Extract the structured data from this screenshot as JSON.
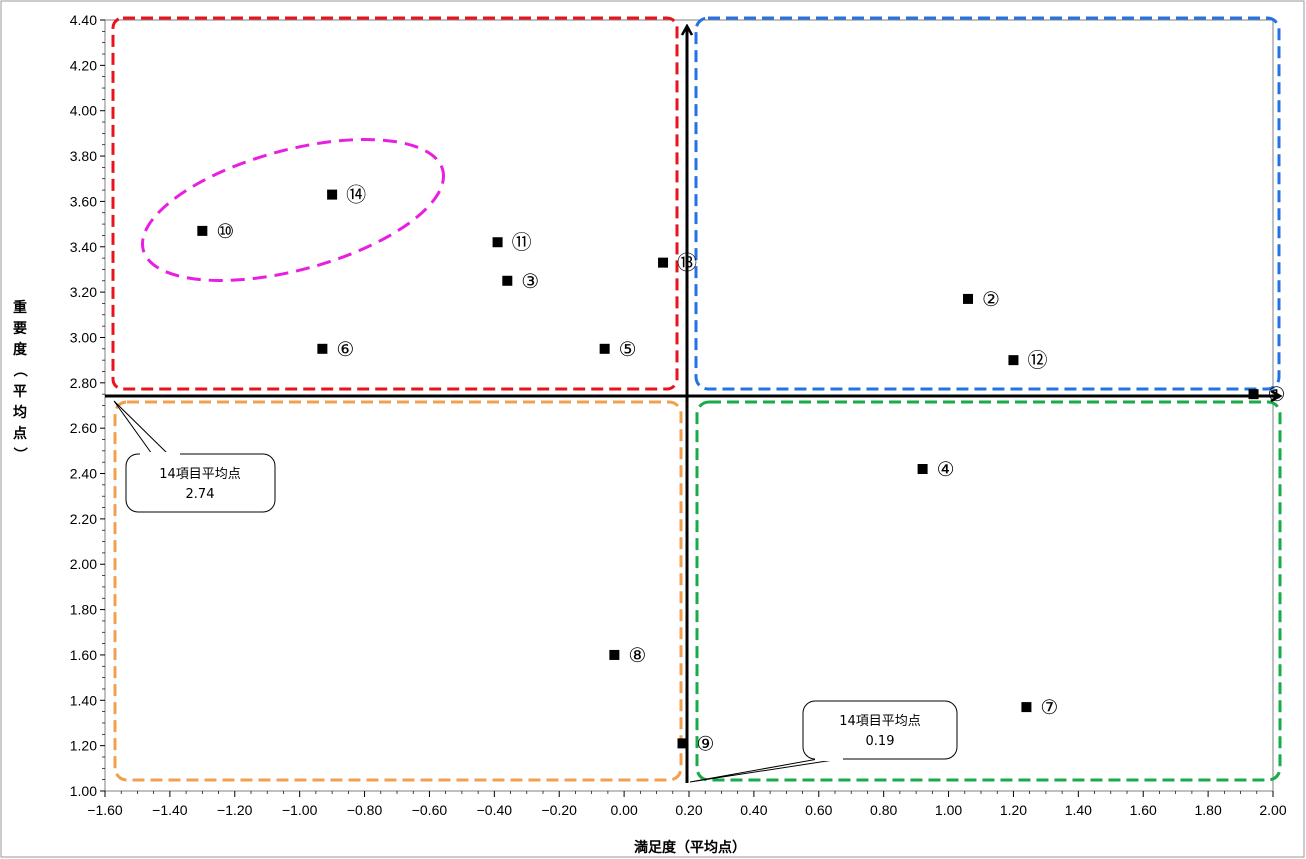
{
  "chart_data": {
    "type": "scatter",
    "title": "",
    "xlabel": "満足度（平均点）",
    "ylabel": "重要度（平均点）",
    "xlim": [
      -1.6,
      2.0
    ],
    "ylim": [
      1.0,
      4.4
    ],
    "x_ticks": [
      "−1.60",
      "−1.40",
      "−1.20",
      "−1.00",
      "−0.80",
      "−0.60",
      "−0.40",
      "−0.20",
      "0.00",
      "0.20",
      "0.40",
      "0.60",
      "0.80",
      "1.00",
      "1.20",
      "1.40",
      "1.60",
      "1.80",
      "2.00"
    ],
    "y_ticks": [
      "1.00",
      "1.20",
      "1.40",
      "1.60",
      "1.80",
      "2.00",
      "2.20",
      "2.40",
      "2.60",
      "2.80",
      "3.00",
      "3.20",
      "3.40",
      "3.60",
      "3.80",
      "4.00",
      "4.20",
      "4.40"
    ],
    "points": [
      {
        "label": "①",
        "x": 1.94,
        "y": 2.75
      },
      {
        "label": "②",
        "x": 1.06,
        "y": 3.17
      },
      {
        "label": "③",
        "x": -0.36,
        "y": 3.25
      },
      {
        "label": "④",
        "x": 0.92,
        "y": 2.42
      },
      {
        "label": "⑤",
        "x": -0.06,
        "y": 2.95
      },
      {
        "label": "⑥",
        "x": -0.93,
        "y": 2.95
      },
      {
        "label": "⑦",
        "x": 1.24,
        "y": 1.37
      },
      {
        "label": "⑧",
        "x": -0.03,
        "y": 1.6
      },
      {
        "label": "⑨",
        "x": 0.18,
        "y": 1.21
      },
      {
        "label": "⑩",
        "x": -1.3,
        "y": 3.47
      },
      {
        "label": "⑪",
        "x": -0.39,
        "y": 3.42
      },
      {
        "label": "⑫",
        "x": 1.2,
        "y": 2.9
      },
      {
        "label": "⑬",
        "x": 0.12,
        "y": 3.33
      },
      {
        "label": "⑭",
        "x": -0.9,
        "y": 3.63
      }
    ],
    "reference_lines": {
      "x": 0.19,
      "y": 2.74
    },
    "callouts": [
      {
        "line1": "14項目平均点",
        "line2": "2.74"
      },
      {
        "line1": "14項目平均点",
        "line2": "0.19"
      }
    ],
    "grid": false,
    "colors": {
      "quadrant_top_left": "#e8131b",
      "quadrant_top_right": "#2472e3",
      "quadrant_bottom_left": "#f0a050",
      "quadrant_bottom_right": "#1aaa4a",
      "ellipse": "#e81fe0",
      "marker": "#000000"
    }
  }
}
